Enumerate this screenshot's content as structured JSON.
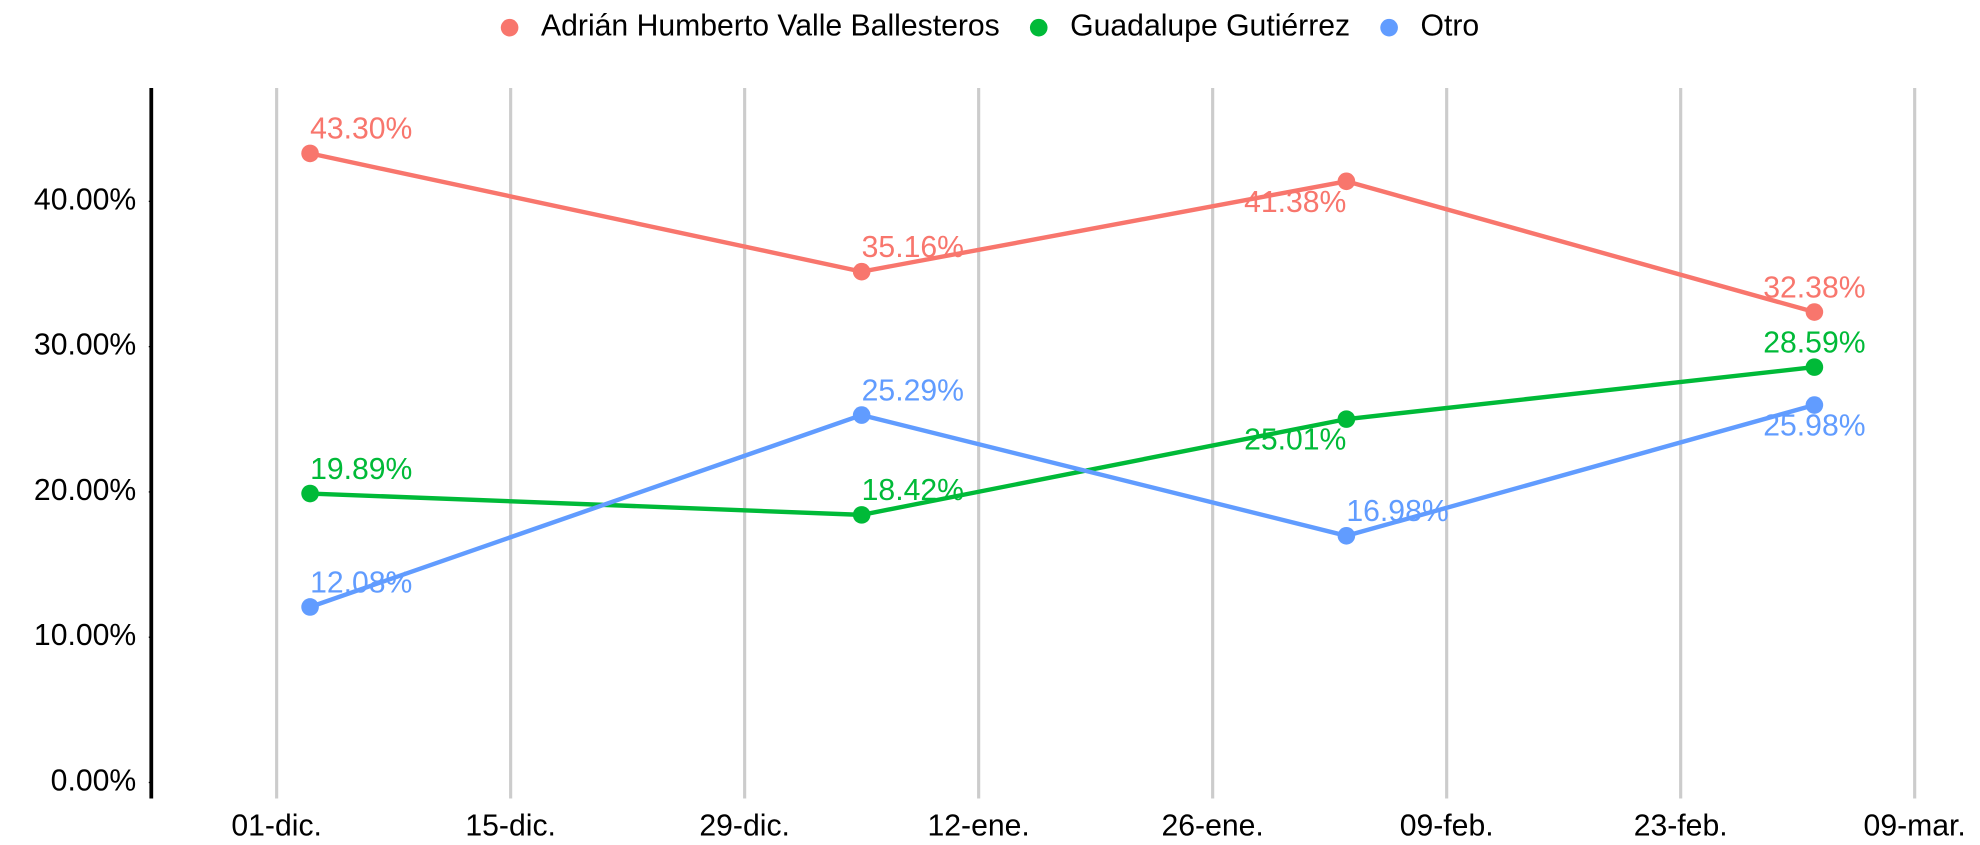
{
  "chart_data": {
    "type": "line",
    "x": [
      2,
      35,
      64,
      92
    ],
    "xlim": [
      -7.5,
      98.8
    ],
    "xticks": [
      {
        "value": 0,
        "label": "01-dic."
      },
      {
        "value": 14,
        "label": "15-dic."
      },
      {
        "value": 28,
        "label": "29-dic."
      },
      {
        "value": 42,
        "label": "12-ene."
      },
      {
        "value": 56,
        "label": "26-ene."
      },
      {
        "value": 70,
        "label": "09-feb."
      },
      {
        "value": 84,
        "label": "23-feb."
      },
      {
        "value": 98,
        "label": "09-mar."
      }
    ],
    "ylim": [
      -1.1,
      47.8
    ],
    "yticks": [
      {
        "value": 0,
        "label": "0.00%"
      },
      {
        "value": 10,
        "label": "10.00%"
      },
      {
        "value": 20,
        "label": "20.00%"
      },
      {
        "value": 30,
        "label": "30.00%"
      },
      {
        "value": 40,
        "label": "40.00%"
      }
    ],
    "grid": "x",
    "legend": "top",
    "series": [
      {
        "name": "Adrián Humberto Valle Ballesteros",
        "color": "#F8766D",
        "values": [
          43.3,
          35.16,
          41.38,
          32.38
        ],
        "value_labels": [
          "43.30%",
          "35.16%",
          "41.38%",
          "32.38%"
        ]
      },
      {
        "name": "Guadalupe Gutiérrez",
        "color": "#00BA38",
        "values": [
          19.89,
          18.42,
          25.01,
          28.59
        ],
        "value_labels": [
          "19.89%",
          "18.42%",
          "25.01%",
          "28.59%"
        ]
      },
      {
        "name": "Otro",
        "color": "#619CFF",
        "values": [
          12.08,
          25.29,
          16.98,
          25.98
        ],
        "value_labels": [
          "12.08%",
          "25.29%",
          "16.98%",
          "25.98%"
        ]
      }
    ]
  }
}
